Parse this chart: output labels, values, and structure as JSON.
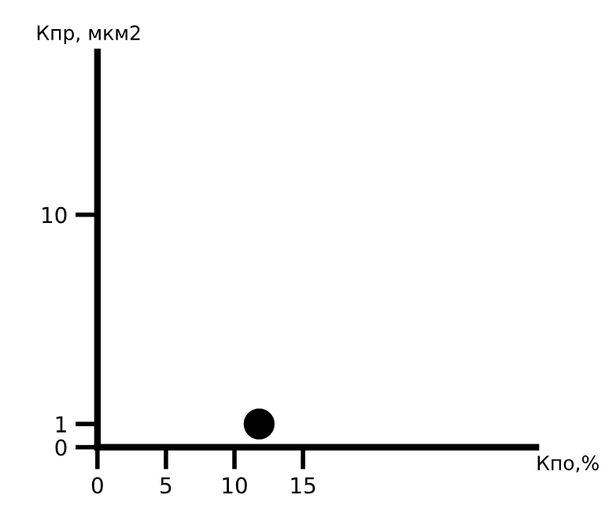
{
  "chart_data": {
    "type": "scatter",
    "xlabel": "Кпо,%",
    "ylabel": "Кпр, мкм2",
    "x": [
      11.8
    ],
    "values": [
      1
    ],
    "color": "#000000",
    "marker": "circle",
    "xlim": [
      0,
      32
    ],
    "ylim": [
      0,
      17
    ],
    "xticks": [
      0,
      5,
      10,
      15
    ],
    "yticks": [
      0,
      1,
      10
    ],
    "grid": false,
    "legend": false
  }
}
